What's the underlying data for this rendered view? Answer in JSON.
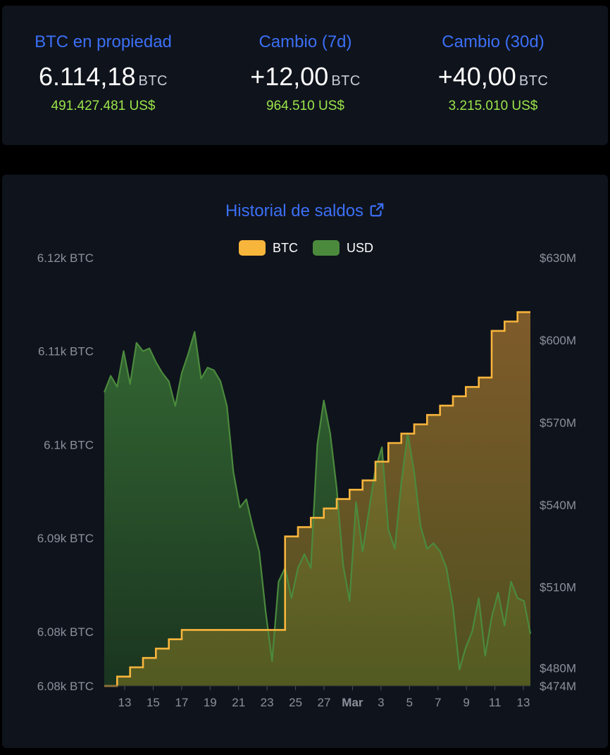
{
  "stats": [
    {
      "title": "BTC en propiedad",
      "value": "6.114,18",
      "unit": "BTC",
      "usd": "491.427.481 US$"
    },
    {
      "title": "Cambio (7d)",
      "value": "+12,00",
      "unit": "BTC",
      "usd": "964.510 US$"
    },
    {
      "title": "Cambio (30d)",
      "value": "+40,00",
      "unit": "BTC",
      "usd": "3.215.010 US$"
    }
  ],
  "chart": {
    "title": "Historial de saldos",
    "title_icon": "external-link-icon",
    "legend": [
      {
        "label": "BTC",
        "color": "#f8b53c"
      },
      {
        "label": "USD",
        "color": "#4b8a3d"
      }
    ]
  },
  "chart_data": {
    "type": "area",
    "title": "Historial de saldos",
    "x_tick_labels": [
      "13",
      "15",
      "17",
      "19",
      "21",
      "23",
      "25",
      "27",
      "Mar",
      "3",
      "5",
      "7",
      "9",
      "11",
      "13"
    ],
    "y_left": {
      "unit": "BTC",
      "ticks": [
        "6.12k BTC",
        "6.11k BTC",
        "6.1k BTC",
        "6.09k BTC",
        "6.08k BTC",
        "6.08k BTC"
      ],
      "range": [
        6074.18,
        6120
      ]
    },
    "y_right": {
      "unit": "USD",
      "ticks": [
        "$630M",
        "$600M",
        "$570M",
        "$540M",
        "$510M",
        "$480M",
        "$474M"
      ],
      "range": [
        474000000,
        630000000
      ]
    },
    "grid": false,
    "legend_position": "top",
    "colors": {
      "btc": "#f8b53c",
      "usd": "#4b8a3d"
    },
    "series": [
      {
        "name": "BTC",
        "axis": "left",
        "step": true,
        "values": [
          6074.18,
          6075.18,
          6076.18,
          6077.18,
          6078.18,
          6079.18,
          6080.18,
          6080.18,
          6080.18,
          6080.18,
          6080.18,
          6080.18,
          6080.18,
          6080.18,
          6090.18,
          6091.18,
          6092.18,
          6093.18,
          6094.18,
          6095.18,
          6096.18,
          6098.18,
          6100.18,
          6101.18,
          6102.18,
          6103.18,
          6104.18,
          6105.18,
          6106.18,
          6107.18,
          6112.18,
          6113.18,
          6114.18,
          6114.18
        ]
      },
      {
        "name": "USD",
        "axis": "right",
        "step": false,
        "values": [
          581000000,
          587000000,
          583000000,
          596000000,
          584000000,
          599000000,
          596000000,
          597000000,
          592000000,
          588000000,
          585000000,
          576000000,
          588000000,
          595000000,
          603000000,
          586000000,
          590000000,
          589000000,
          585000000,
          576000000,
          552000000,
          539000000,
          542000000,
          532000000,
          523000000,
          501000000,
          483000000,
          512000000,
          517000000,
          506000000,
          517000000,
          522000000,
          517000000,
          562000000,
          578000000,
          566000000,
          546000000,
          518000000,
          505000000,
          541000000,
          523000000,
          538000000,
          553000000,
          561000000,
          531000000,
          524000000,
          548000000,
          566000000,
          552000000,
          532000000,
          524000000,
          526000000,
          523000000,
          517000000,
          503000000,
          480000000,
          488000000,
          494000000,
          506000000,
          485000000,
          499000000,
          508000000,
          496000000,
          512000000,
          506000000,
          505000000,
          493000000
        ]
      }
    ]
  }
}
